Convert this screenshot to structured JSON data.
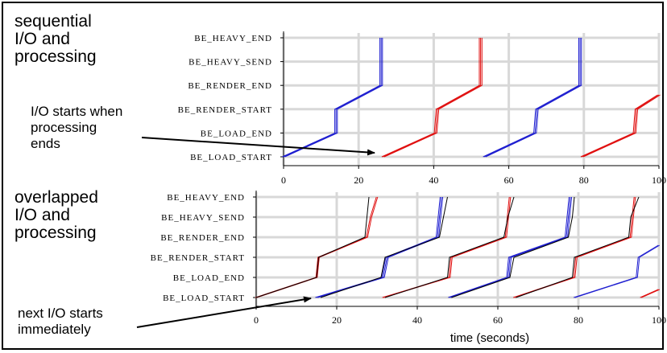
{
  "annotations": {
    "top_title": "sequential\nI/O and\nprocessing",
    "bottom_title": "overlapped\nI/O and\nprocessing",
    "top_note": "I/O starts when\nprocessing\nends",
    "bottom_note": "next I/O starts\nimmediately"
  },
  "colors": {
    "blue": "#1f1fd0",
    "red": "#e01010",
    "black": "#000000",
    "grid": "#d8d8d8"
  },
  "chart_data": [
    {
      "type": "line",
      "title": "sequential I/O and processing",
      "xlabel": "",
      "ylabel": "",
      "xlim": [
        0,
        100
      ],
      "xticks": [
        "0",
        "20",
        "40",
        "60",
        "80",
        "100"
      ],
      "ylevels": [
        "BE_LOAD_START",
        "BE_LOAD_END",
        "BE_RENDER_START",
        "BE_RENDER_END",
        "BE_HEAVY_SEND",
        "BE_HEAVY_END"
      ],
      "grid": true,
      "series": [
        {
          "color": "blue",
          "points": [
            [
              0,
              0
            ],
            [
              14,
              1
            ],
            [
              14,
              2
            ],
            [
              26,
              3
            ],
            [
              26,
              4
            ],
            [
              26,
              5
            ]
          ],
          "copies": 3
        },
        {
          "color": "red",
          "points": [
            [
              26.5,
              0
            ],
            [
              40.5,
              1
            ],
            [
              41,
              2
            ],
            [
              52.5,
              3
            ],
            [
              52.5,
              4
            ],
            [
              52.5,
              5
            ]
          ],
          "copies": 3
        },
        {
          "color": "blue",
          "points": [
            [
              53.5,
              0
            ],
            [
              67,
              1
            ],
            [
              67.5,
              2
            ],
            [
              79,
              3
            ],
            [
              79,
              4
            ],
            [
              79,
              5
            ]
          ],
          "copies": 3
        },
        {
          "color": "red",
          "points": [
            [
              79.5,
              0
            ],
            [
              93.5,
              1
            ],
            [
              94,
              2
            ],
            [
              100,
              2.6
            ]
          ],
          "copies": 3
        }
      ]
    },
    {
      "type": "line",
      "title": "overlapped I/O and processing",
      "xlabel": "time (seconds)",
      "ylabel": "",
      "xlim": [
        0,
        100
      ],
      "xticks": [
        "0",
        "20",
        "40",
        "60",
        "80",
        "100"
      ],
      "ylevels": [
        "BE_LOAD_START",
        "BE_LOAD_END",
        "BE_RENDER_START",
        "BE_RENDER_END",
        "BE_HEAVY_SEND",
        "BE_HEAVY_END"
      ],
      "grid": true,
      "series": [
        {
          "color": "red",
          "points": [
            [
              0,
              0
            ],
            [
              15,
              1
            ],
            [
              15.5,
              2
            ],
            [
              27.5,
              3
            ],
            [
              28.5,
              4
            ],
            [
              30,
              5
            ]
          ],
          "copies": 2
        },
        {
          "color": "black",
          "points": [
            [
              0,
              0
            ],
            [
              15,
              1
            ],
            [
              15.5,
              2
            ],
            [
              27,
              3
            ],
            [
              27.5,
              4
            ],
            [
              28,
              5
            ]
          ],
          "copies": 1
        },
        {
          "color": "blue",
          "points": [
            [
              15,
              0
            ],
            [
              31.5,
              1
            ],
            [
              32.5,
              2
            ],
            [
              45,
              3
            ],
            [
              45.5,
              4
            ],
            [
              46,
              5
            ]
          ],
          "copies": 3
        },
        {
          "color": "black",
          "points": [
            [
              16,
              0
            ],
            [
              31,
              1
            ],
            [
              32,
              2
            ],
            [
              45.5,
              3
            ],
            [
              46.5,
              4
            ],
            [
              47.5,
              5
            ]
          ],
          "copies": 1
        },
        {
          "color": "red",
          "points": [
            [
              31.5,
              0
            ],
            [
              48,
              1
            ],
            [
              48.5,
              2
            ],
            [
              62,
              3
            ],
            [
              62.5,
              4
            ],
            [
              63,
              5
            ]
          ],
          "copies": 2
        },
        {
          "color": "black",
          "points": [
            [
              32,
              0
            ],
            [
              47.5,
              1
            ],
            [
              48,
              2
            ],
            [
              61.5,
              3
            ],
            [
              62.5,
              4
            ],
            [
              64,
              5
            ]
          ],
          "copies": 1
        },
        {
          "color": "blue",
          "points": [
            [
              48,
              0
            ],
            [
              62.5,
              1
            ],
            [
              63,
              2
            ],
            [
              77,
              3
            ],
            [
              77.5,
              4
            ],
            [
              78,
              5
            ]
          ],
          "copies": 3
        },
        {
          "color": "black",
          "points": [
            [
              48.5,
              0
            ],
            [
              63,
              1
            ],
            [
              64,
              2
            ],
            [
              77.5,
              3
            ],
            [
              78.5,
              4
            ],
            [
              79,
              5
            ]
          ],
          "copies": 1
        },
        {
          "color": "red",
          "points": [
            [
              64,
              0
            ],
            [
              79,
              1
            ],
            [
              79.5,
              2
            ],
            [
              93,
              3
            ],
            [
              93.5,
              4
            ],
            [
              94,
              5
            ]
          ],
          "copies": 2
        },
        {
          "color": "black",
          "points": [
            [
              64.5,
              0
            ],
            [
              78.5,
              1
            ],
            [
              79,
              2
            ],
            [
              92.5,
              3
            ],
            [
              93,
              4
            ],
            [
              95,
              5
            ]
          ],
          "copies": 1
        },
        {
          "color": "blue",
          "points": [
            [
              79,
              0
            ],
            [
              94.5,
              1
            ],
            [
              95,
              2
            ],
            [
              100,
              2.6
            ]
          ],
          "copies": 2
        },
        {
          "color": "red",
          "points": [
            [
              95.5,
              0
            ],
            [
              100,
              0.4
            ]
          ],
          "copies": 2
        }
      ]
    }
  ]
}
